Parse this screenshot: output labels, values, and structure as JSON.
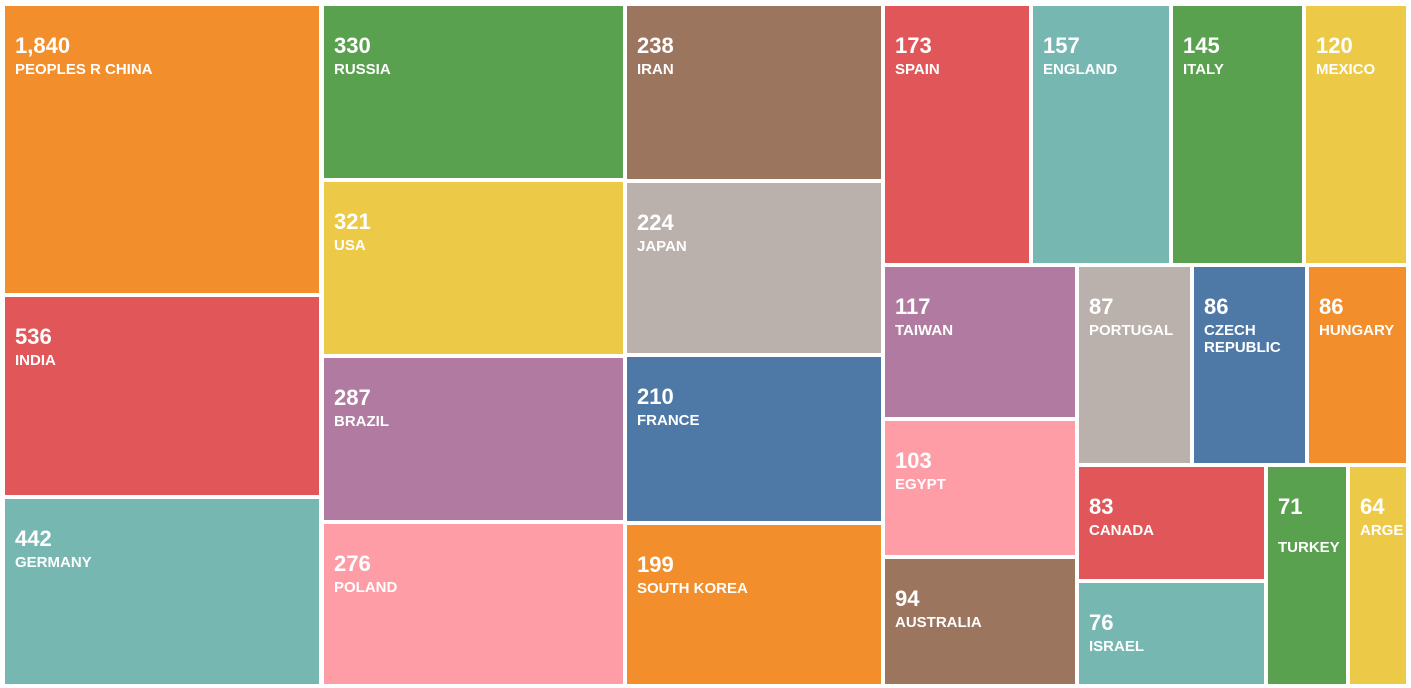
{
  "chart_data": {
    "type": "treemap",
    "items": [
      {
        "label": "PEOPLES R CHINA",
        "value": 1840,
        "value_text": "1,840",
        "color": "#F28E2B"
      },
      {
        "label": "INDIA",
        "value": 536,
        "value_text": "536",
        "color": "#E15759"
      },
      {
        "label": "GERMANY",
        "value": 442,
        "value_text": "442",
        "color": "#76B7B2"
      },
      {
        "label": "RUSSIA",
        "value": 330,
        "value_text": "330",
        "color": "#59A14F"
      },
      {
        "label": "USA",
        "value": 321,
        "value_text": "321",
        "color": "#EDC948"
      },
      {
        "label": "BRAZIL",
        "value": 287,
        "value_text": "287",
        "color": "#B07AA1"
      },
      {
        "label": "POLAND",
        "value": 276,
        "value_text": "276",
        "color": "#FF9DA7"
      },
      {
        "label": "IRAN",
        "value": 238,
        "value_text": "238",
        "color": "#9C755F"
      },
      {
        "label": "JAPAN",
        "value": 224,
        "value_text": "224",
        "color": "#BAB0AC"
      },
      {
        "label": "FRANCE",
        "value": 210,
        "value_text": "210",
        "color": "#4E79A7"
      },
      {
        "label": "SOUTH KOREA",
        "value": 199,
        "value_text": "199",
        "color": "#F28E2B"
      },
      {
        "label": "SPAIN",
        "value": 173,
        "value_text": "173",
        "color": "#E15759"
      },
      {
        "label": "ENGLAND",
        "value": 157,
        "value_text": "157",
        "color": "#76B7B2"
      },
      {
        "label": "ITALY",
        "value": 145,
        "value_text": "145",
        "color": "#59A14F"
      },
      {
        "label": "MEXICO",
        "value": 120,
        "value_text": "120",
        "color": "#EDC948"
      },
      {
        "label": "TAIWAN",
        "value": 117,
        "value_text": "117",
        "color": "#B07AA1"
      },
      {
        "label": "EGYPT",
        "value": 103,
        "value_text": "103",
        "color": "#FF9DA7"
      },
      {
        "label": "AUSTRALIA",
        "value": 94,
        "value_text": "94",
        "color": "#9C755F"
      },
      {
        "label": "PORTUGAL",
        "value": 87,
        "value_text": "87",
        "color": "#BAB0AC"
      },
      {
        "label": "CZECH REPUBLIC",
        "value": 86,
        "value_text": "86",
        "color": "#4E79A7"
      },
      {
        "label": "HUNGARY",
        "value": 86,
        "value_text": "86",
        "color": "#F28E2B"
      },
      {
        "label": "CANADA",
        "value": 83,
        "value_text": "83",
        "color": "#E15759"
      },
      {
        "label": "ISRAEL",
        "value": 76,
        "value_text": "76",
        "color": "#76B7B2"
      },
      {
        "label": "TURKEY",
        "value": 71,
        "value_text": "71",
        "color": "#59A14F"
      },
      {
        "label": "ARGE",
        "value": 64,
        "value_text": "64",
        "color": "#EDC948"
      }
    ]
  }
}
